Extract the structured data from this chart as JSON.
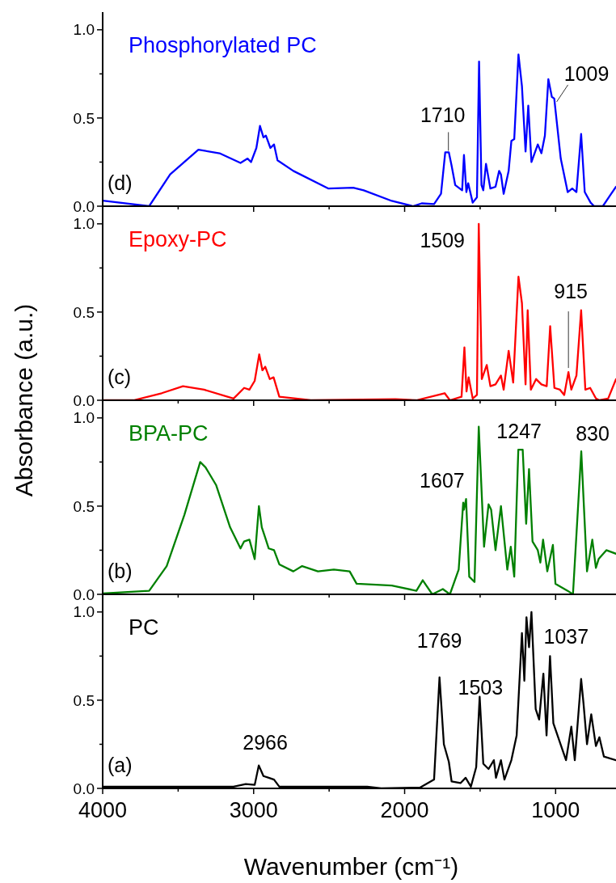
{
  "chart_data": [
    {
      "type": "line",
      "ylabel": "Absorbance (a.u.)",
      "xlim": [
        4000,
        600
      ],
      "xticks": [
        4000,
        {
          "value": 3500,
          "label": null
        },
        3000,
        {
          "value": 2500,
          "label": null
        },
        2000,
        {
          "value": 1500,
          "label": null
        },
        1000
      ],
      "ylim": [
        0,
        1.1
      ],
      "yticks": [
        {
          "value": 0,
          "label": "0.0"
        },
        {
          "value": 0.25,
          "label": null
        },
        {
          "value": 0.5,
          "label": "0.5"
        },
        {
          "value": 0.75,
          "label": null
        },
        {
          "value": 1,
          "label": "1.0"
        }
      ],
      "tick_labels": "y",
      "annotations": [
        "(d)",
        {
          "text": "1710",
          "x": 1710,
          "y": 0.305
        },
        {
          "text": "1009",
          "x": 1009,
          "y": 0.61
        }
      ],
      "series": [
        {
          "name": "Phosphorylated PC",
          "color": "#0000ff",
          "x": [
            4000,
            3692,
            3553,
            3366,
            3226,
            3087,
            3040,
            3017,
            2982,
            2958,
            2935,
            2919,
            2889,
            2865,
            2842,
            2737,
            2504,
            2341,
            2271,
            2085,
            1945,
            1887,
            1805,
            1759,
            1731,
            1707,
            1689,
            1665,
            1619,
            1607,
            1591,
            1579,
            1549,
            1521,
            1507,
            1491,
            1479,
            1461,
            1432,
            1398,
            1374,
            1362,
            1344,
            1311,
            1293,
            1274,
            1246,
            1223,
            1199,
            1181,
            1160,
            1118,
            1094,
            1071,
            1048,
            1025,
            1009,
            966,
            920,
            890,
            862,
            831,
            807,
            768,
            745,
            687,
            640,
            600
          ],
          "values": [
            0.032,
            0,
            0.18,
            0.32,
            0.3,
            0.245,
            0.27,
            0.25,
            0.33,
            0.455,
            0.39,
            0.4,
            0.33,
            0.35,
            0.26,
            0.2,
            0.1,
            0.105,
            0.09,
            0.03,
            0,
            0.016,
            0.012,
            0.07,
            0.305,
            0.305,
            0.23,
            0.12,
            0.09,
            0.29,
            0.08,
            0.13,
            0.02,
            0.05,
            0.82,
            0.12,
            0.09,
            0.24,
            0.1,
            0.11,
            0.2,
            0.18,
            0.07,
            0.2,
            0.37,
            0.38,
            0.86,
            0.68,
            0.31,
            0.57,
            0.25,
            0.35,
            0.3,
            0.4,
            0.72,
            0.62,
            0.61,
            0.27,
            0.08,
            0.1,
            0.08,
            0.41,
            0.08,
            0.02,
            0,
            0,
            0.06,
            0.11
          ]
        }
      ]
    },
    {
      "type": "line",
      "xlim": [
        4000,
        600
      ],
      "xticks": [
        4000,
        {
          "value": 3500,
          "label": null
        },
        3000,
        {
          "value": 2500,
          "label": null
        },
        2000,
        {
          "value": 1500,
          "label": null
        },
        1000
      ],
      "ylim": [
        0,
        1.1
      ],
      "yticks": [
        {
          "value": 0,
          "label": "0.0"
        },
        {
          "value": 0.25,
          "label": null
        },
        {
          "value": 0.5,
          "label": "0.5"
        },
        {
          "value": 0.75,
          "label": null
        },
        {
          "value": 1,
          "label": "1.0"
        }
      ],
      "tick_labels": "y",
      "annotations": [
        "(c)",
        {
          "text": "1509",
          "x": 1509,
          "y": 1.0
        },
        {
          "text": "915",
          "x": 915,
          "y": 0.16
        }
      ],
      "series": [
        {
          "name": "Epoxy-PC",
          "color": "#ff0000",
          "x": [
            4000,
            3795,
            3609,
            3468,
            3328,
            3133,
            3063,
            3028,
            2993,
            2963,
            2942,
            2923,
            2893,
            2868,
            2830,
            2621,
            2061,
            1922,
            1735,
            1700,
            1623,
            1604,
            1590,
            1576,
            1549,
            1521,
            1509,
            1489,
            1456,
            1432,
            1398,
            1362,
            1344,
            1311,
            1281,
            1246,
            1223,
            1199,
            1185,
            1164,
            1129,
            1094,
            1059,
            1036,
            1008,
            971,
            943,
            915,
            896,
            862,
            831,
            803,
            771,
            733,
            710,
            652,
            600
          ],
          "values": [
            0,
            0,
            0.04,
            0.08,
            0.06,
            0.01,
            0.07,
            0.06,
            0.11,
            0.26,
            0.17,
            0.19,
            0.12,
            0.13,
            0.02,
            0,
            0.006,
            0,
            0.04,
            0,
            0.02,
            0.3,
            0.05,
            0.13,
            0.01,
            0.03,
            1.0,
            0.12,
            0.2,
            0.08,
            0.09,
            0.14,
            0.06,
            0.28,
            0.1,
            0.7,
            0.55,
            0.09,
            0.51,
            0.06,
            0.12,
            0.09,
            0.08,
            0.42,
            0.07,
            0.06,
            0.03,
            0.16,
            0.06,
            0.14,
            0.51,
            0.06,
            0.07,
            0.01,
            0,
            0.01,
            0.12
          ]
        }
      ]
    },
    {
      "type": "line",
      "xlim": [
        4000,
        600
      ],
      "xticks": [
        4000,
        {
          "value": 3500,
          "label": null
        },
        3000,
        {
          "value": 2500,
          "label": null
        },
        2000,
        {
          "value": 1500,
          "label": null
        },
        1000
      ],
      "ylim": [
        0,
        1.1
      ],
      "yticks": [
        {
          "value": 0,
          "label": "0.0"
        },
        {
          "value": 0.25,
          "label": null
        },
        {
          "value": 0.5,
          "label": "0.5"
        },
        {
          "value": 0.75,
          "label": null
        },
        {
          "value": 1,
          "label": "1.0"
        }
      ],
      "tick_labels": "y",
      "annotations": [
        "(b)",
        {
          "text": "1607",
          "x": 1607,
          "y": 0.54
        },
        {
          "text": "1247",
          "x": 1247,
          "y": 0.82
        },
        {
          "text": "830",
          "x": 830,
          "y": 0.81
        }
      ],
      "series": [
        {
          "name": "BPA-PC",
          "color": "#008000",
          "x": [
            4000,
            3692,
            3576,
            3459,
            3354,
            3319,
            3249,
            3156,
            3087,
            3063,
            3028,
            2993,
            2965,
            2946,
            2923,
            2900,
            2865,
            2830,
            2737,
            2679,
            2574,
            2469,
            2364,
            2318,
            2085,
            1922,
            1880,
            1817,
            1747,
            1700,
            1642,
            1612,
            1607,
            1593,
            1572,
            1537,
            1509,
            1474,
            1444,
            1427,
            1398,
            1362,
            1320,
            1297,
            1274,
            1247,
            1218,
            1195,
            1176,
            1153,
            1118,
            1101,
            1083,
            1055,
            1018,
            1001,
            920,
            885,
            830,
            792,
            757,
            733,
            715,
            664,
            600
          ],
          "values": [
            0.005,
            0.02,
            0.16,
            0.45,
            0.75,
            0.72,
            0.62,
            0.38,
            0.26,
            0.3,
            0.31,
            0.2,
            0.5,
            0.38,
            0.32,
            0.26,
            0.25,
            0.17,
            0.13,
            0.16,
            0.13,
            0.14,
            0.13,
            0.06,
            0.05,
            0.02,
            0.08,
            0,
            0.03,
            0,
            0.14,
            0.52,
            0.48,
            0.54,
            0.1,
            0.07,
            0.95,
            0.27,
            0.51,
            0.48,
            0.25,
            0.5,
            0.14,
            0.27,
            0.1,
            0.82,
            0.82,
            0.4,
            0.71,
            0.3,
            0.25,
            0.18,
            0.31,
            0.13,
            0.28,
            0.06,
            0.02,
            0,
            0.81,
            0.13,
            0.31,
            0.15,
            0.2,
            0.25,
            0.23
          ]
        }
      ]
    },
    {
      "type": "line",
      "xlabel": "Wavenumber (cm⁻¹)",
      "xlim": [
        4000,
        600
      ],
      "xticks": [
        4000,
        {
          "value": 3500,
          "label": null
        },
        3000,
        {
          "value": 2500,
          "label": null
        },
        2000,
        {
          "value": 1500,
          "label": null
        },
        1000
      ],
      "ylim": [
        0,
        1.1
      ],
      "yticks": [
        {
          "value": 0,
          "label": "0.0"
        },
        {
          "value": 0.25,
          "label": null
        },
        {
          "value": 0.5,
          "label": "0.5"
        },
        {
          "value": 0.75,
          "label": null
        },
        {
          "value": 1,
          "label": "1.0"
        }
      ],
      "annotations": [
        "(a)",
        {
          "text": "2966",
          "x": 2966,
          "y": 0.13
        },
        {
          "text": "1769",
          "x": 1769,
          "y": 0.63
        },
        {
          "text": "1503",
          "x": 1503,
          "y": 0.52
        },
        {
          "text": "1037",
          "x": 1037,
          "y": 0.75
        }
      ],
      "series": [
        {
          "name": "PC",
          "color": "#000000",
          "x": [
            4000,
            3133,
            3052,
            2993,
            2966,
            2935,
            2900,
            2865,
            2830,
            2248,
            2155,
            1898,
            1805,
            1769,
            1740,
            1707,
            1689,
            1630,
            1596,
            1561,
            1526,
            1503,
            1479,
            1444,
            1409,
            1395,
            1362,
            1339,
            1293,
            1258,
            1223,
            1207,
            1193,
            1176,
            1160,
            1132,
            1109,
            1081,
            1060,
            1037,
            1015,
            931,
            896,
            873,
            831,
            815,
            792,
            764,
            733,
            710,
            680,
            600
          ],
          "values": [
            0.01,
            0.01,
            0.025,
            0.02,
            0.13,
            0.07,
            0.06,
            0.05,
            0.01,
            0.01,
            0,
            0.005,
            0.05,
            0.63,
            0.25,
            0.15,
            0.04,
            0.03,
            0.06,
            0.01,
            0.12,
            0.52,
            0.14,
            0.11,
            0.16,
            0.06,
            0.16,
            0.05,
            0.16,
            0.3,
            0.88,
            0.61,
            0.97,
            0.8,
            1.0,
            0.45,
            0.39,
            0.65,
            0.3,
            0.75,
            0.37,
            0.16,
            0.35,
            0.16,
            0.62,
            0.48,
            0.25,
            0.42,
            0.24,
            0.29,
            0.18,
            0.16
          ]
        }
      ]
    }
  ]
}
